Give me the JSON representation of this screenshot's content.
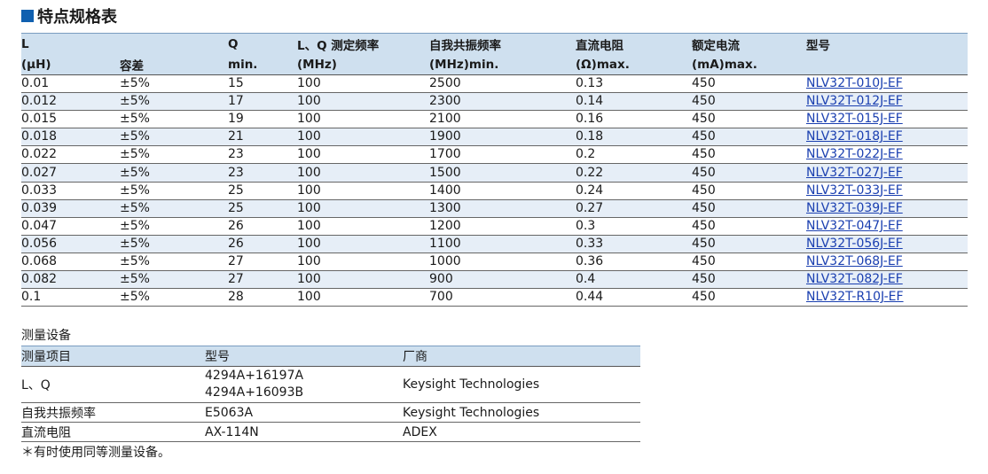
{
  "title": "特点规格表",
  "spec": {
    "header_row1": [
      "L",
      "",
      "Q",
      "L、Q 测定频率",
      "自我共振频率",
      "直流电阻",
      "额定电流",
      "型号"
    ],
    "header_row2": [
      "(μH)",
      "容差",
      "min.",
      "(MHz)",
      "(MHz)min.",
      "(Ω)max.",
      "(mA)max.",
      ""
    ],
    "rows": [
      [
        "0.01",
        "±5%",
        "15",
        "100",
        "2500",
        "0.13",
        "450",
        "NLV32T-010J-EF"
      ],
      [
        "0.012",
        "±5%",
        "17",
        "100",
        "2300",
        "0.14",
        "450",
        "NLV32T-012J-EF"
      ],
      [
        "0.015",
        "±5%",
        "19",
        "100",
        "2100",
        "0.16",
        "450",
        "NLV32T-015J-EF"
      ],
      [
        "0.018",
        "±5%",
        "21",
        "100",
        "1900",
        "0.18",
        "450",
        "NLV32T-018J-EF"
      ],
      [
        "0.022",
        "±5%",
        "23",
        "100",
        "1700",
        "0.2",
        "450",
        "NLV32T-022J-EF"
      ],
      [
        "0.027",
        "±5%",
        "23",
        "100",
        "1500",
        "0.22",
        "450",
        "NLV32T-027J-EF"
      ],
      [
        "0.033",
        "±5%",
        "25",
        "100",
        "1400",
        "0.24",
        "450",
        "NLV32T-033J-EF"
      ],
      [
        "0.039",
        "±5%",
        "25",
        "100",
        "1300",
        "0.27",
        "450",
        "NLV32T-039J-EF"
      ],
      [
        "0.047",
        "±5%",
        "26",
        "100",
        "1200",
        "0.3",
        "450",
        "NLV32T-047J-EF"
      ],
      [
        "0.056",
        "±5%",
        "26",
        "100",
        "1100",
        "0.33",
        "450",
        "NLV32T-056J-EF"
      ],
      [
        "0.068",
        "±5%",
        "27",
        "100",
        "1000",
        "0.36",
        "450",
        "NLV32T-068J-EF"
      ],
      [
        "0.082",
        "±5%",
        "27",
        "100",
        "900",
        "0.4",
        "450",
        "NLV32T-082J-EF"
      ],
      [
        "0.1",
        "±5%",
        "28",
        "100",
        "700",
        "0.44",
        "450",
        "NLV32T-R10J-EF"
      ]
    ]
  },
  "equipment": {
    "caption": "测量设备",
    "headers": [
      "测量项目",
      "型号",
      "厂商"
    ],
    "rows": [
      {
        "item": "L、Q",
        "models": [
          "4294A+16197A",
          "4294A+16093B"
        ],
        "maker": "Keysight Technologies"
      },
      {
        "item": "自我共振频率",
        "models": [
          "E5063A"
        ],
        "maker": "Keysight Technologies"
      },
      {
        "item": "直流电阻",
        "models": [
          "AX-114N"
        ],
        "maker": "ADEX"
      }
    ]
  },
  "note": "＊有时使用同等测量设备。"
}
